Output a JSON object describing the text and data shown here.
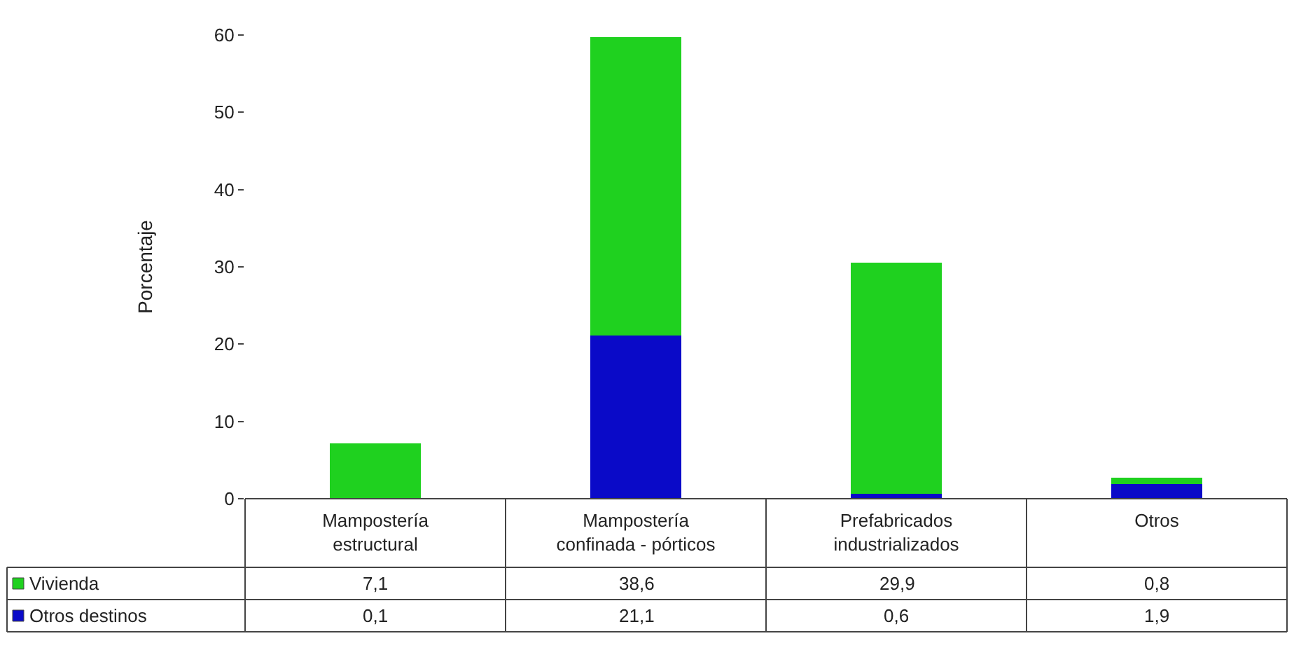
{
  "chart_data": {
    "type": "bar",
    "stacked": true,
    "ylabel": "Porcentaje",
    "categories": [
      "Mampostería estructural",
      "Mampostería confinada - pórticos",
      "Prefabricados industrializados",
      "Otros"
    ],
    "series": [
      {
        "name": "Otros destinos",
        "color": "#0a0ac8",
        "values": [
          0.1,
          21.1,
          0.6,
          1.9
        ],
        "value_labels": [
          "0,1",
          "21,1",
          "0,6",
          "1,9"
        ]
      },
      {
        "name": "Vivienda",
        "color": "#1fd11f",
        "values": [
          7.1,
          38.6,
          29.9,
          0.8
        ],
        "value_labels": [
          "7,1",
          "38,6",
          "29,9",
          "0,8"
        ]
      }
    ],
    "ylim": [
      0,
      60
    ],
    "yticks": [
      0,
      10,
      20,
      30,
      40,
      50,
      60
    ],
    "grid": false,
    "legend": "bottom left"
  }
}
